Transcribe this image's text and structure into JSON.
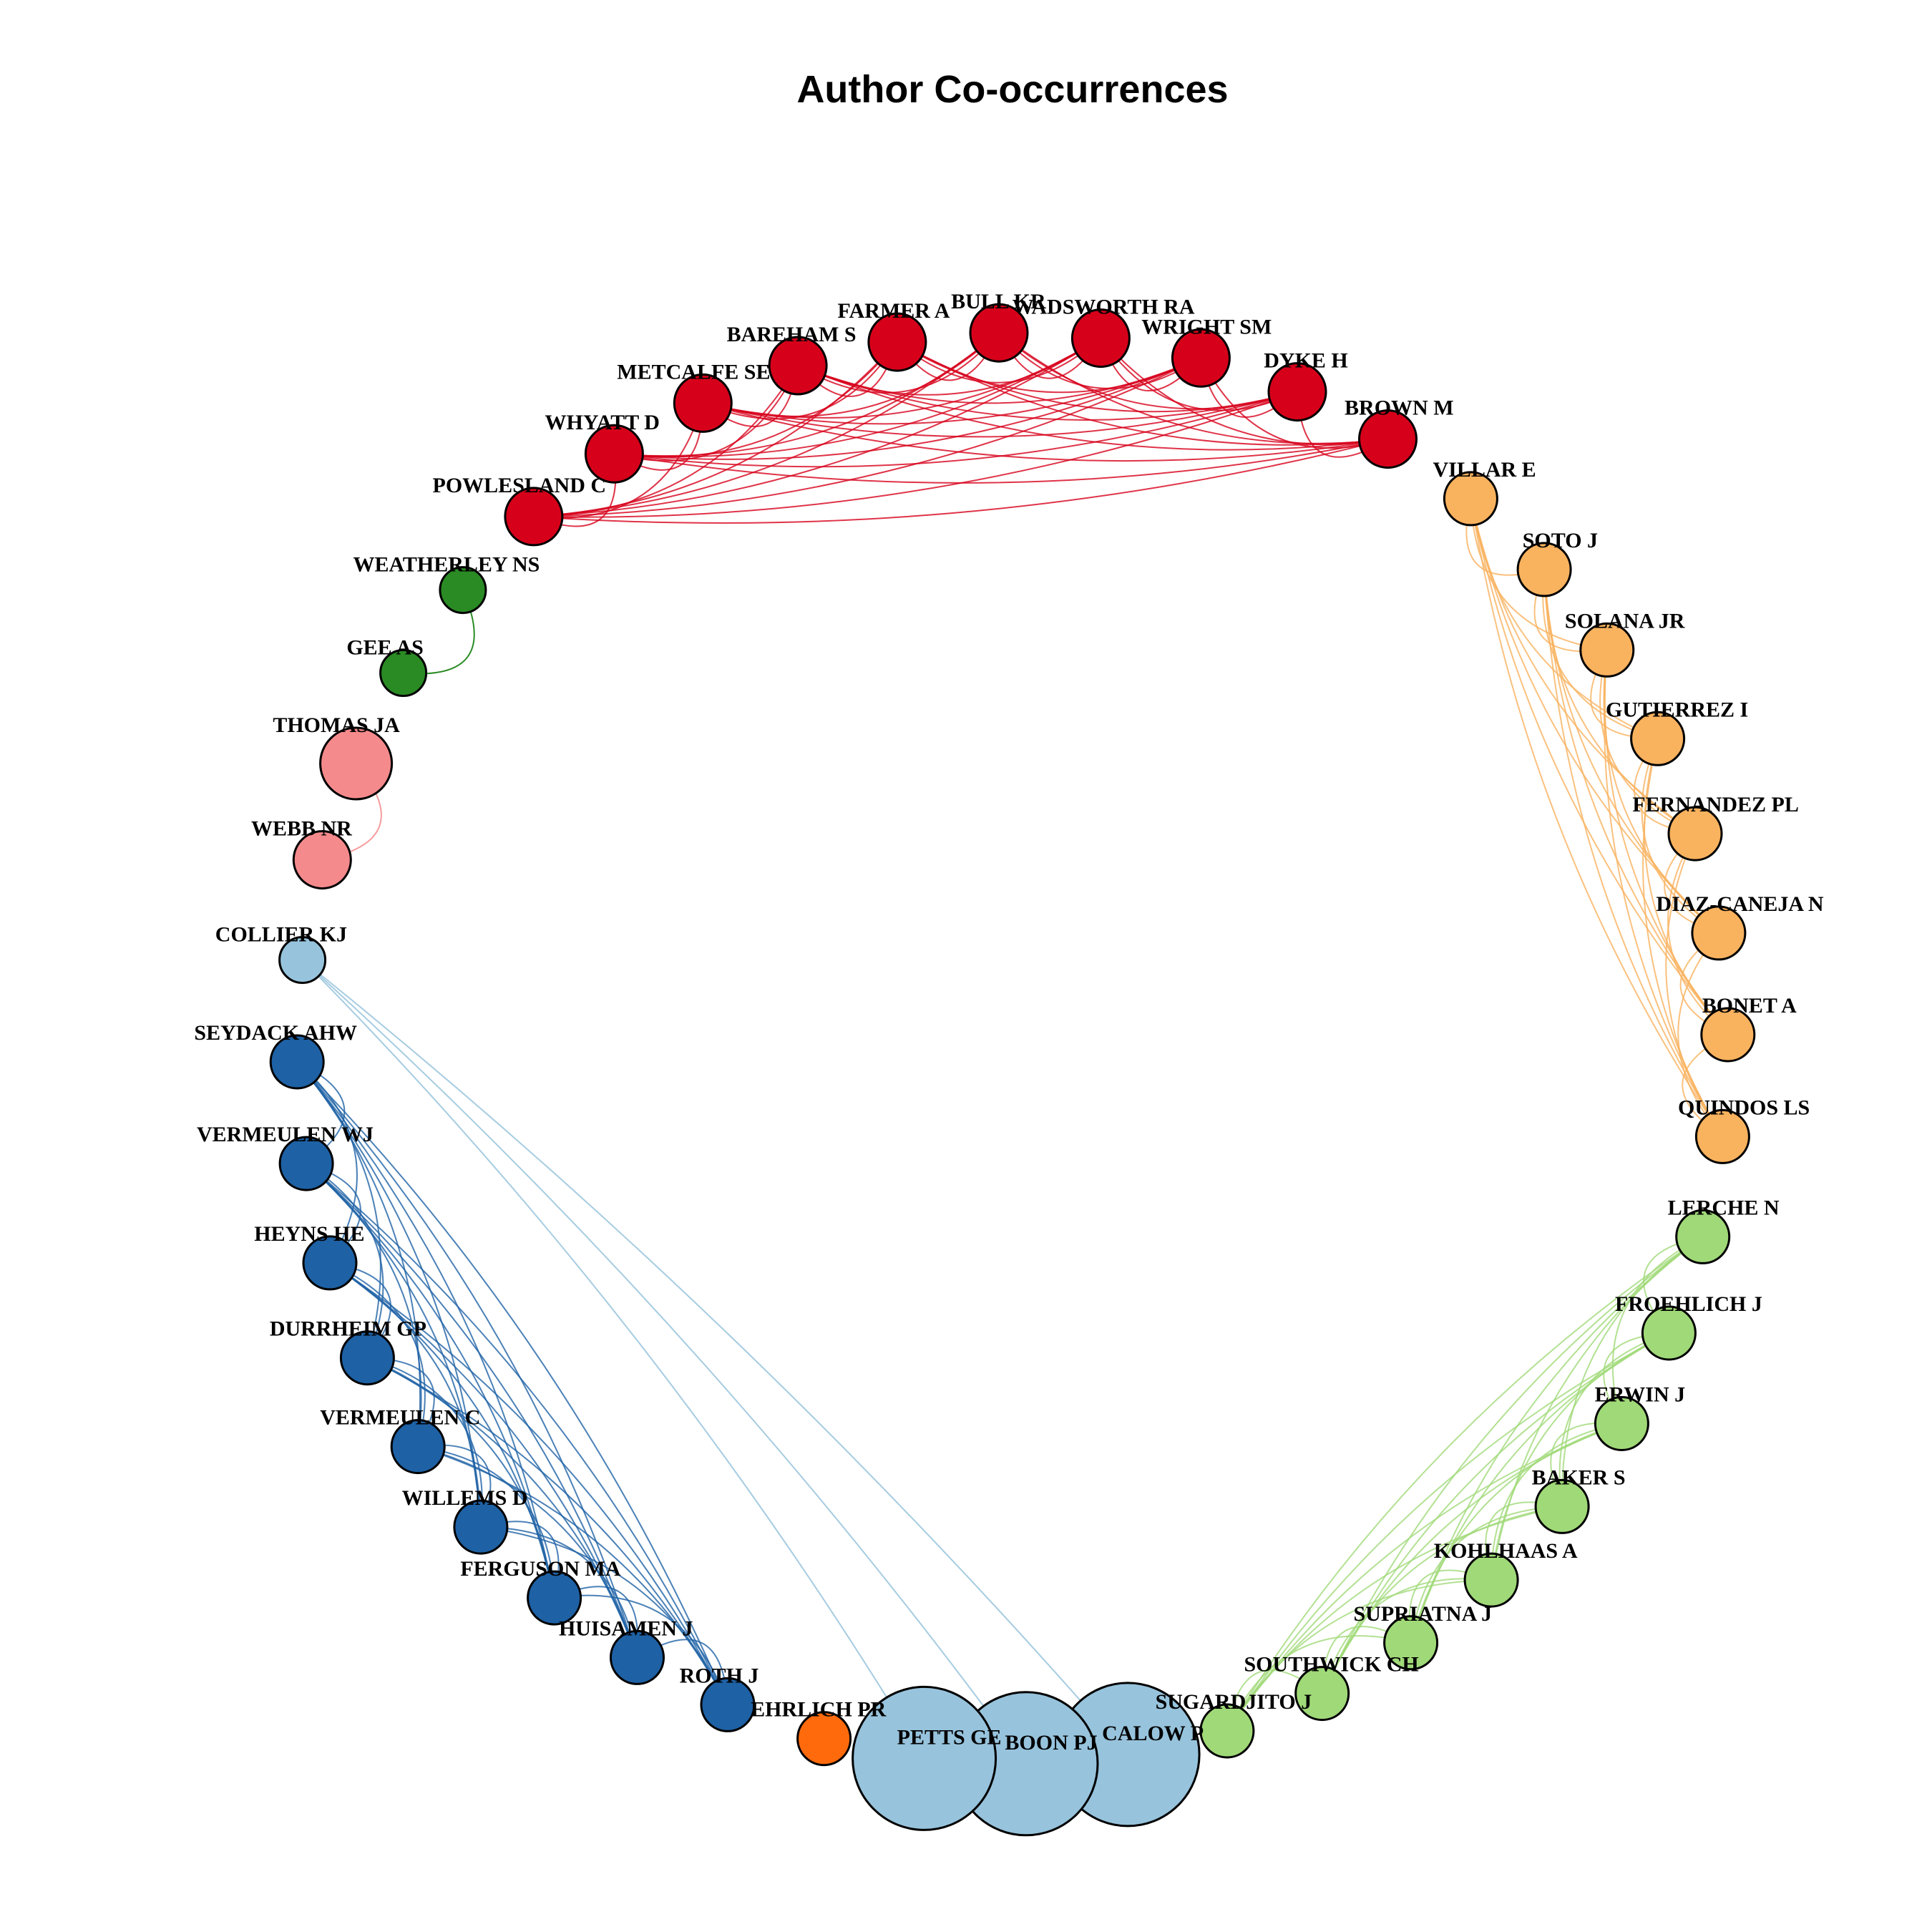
{
  "title": "Author Co-occurrences",
  "groups": [
    {
      "id": "red",
      "color": "#d7001a"
    },
    {
      "id": "orange",
      "color": "#f9b25e"
    },
    {
      "id": "lightgreen",
      "color": "#a0d978"
    },
    {
      "id": "lightblue",
      "color": "#97c3dc"
    },
    {
      "id": "darkorange",
      "color": "#ff6a0d"
    },
    {
      "id": "blue",
      "color": "#1e61a5"
    },
    {
      "id": "pink",
      "color": "#f58a8c"
    },
    {
      "id": "green",
      "color": "#2a8b24"
    }
  ],
  "nodes": [
    {
      "label": "POWLESLAND C",
      "group": "red",
      "size": "medium"
    },
    {
      "label": "WHYATT D",
      "group": "red",
      "size": "medium"
    },
    {
      "label": "METCALFE SE",
      "group": "red",
      "size": "medium"
    },
    {
      "label": "BAREHAM S",
      "group": "red",
      "size": "medium"
    },
    {
      "label": "FARMER A",
      "group": "red",
      "size": "medium"
    },
    {
      "label": "BULL KR",
      "group": "red",
      "size": "medium"
    },
    {
      "label": "WADSWORTH RA",
      "group": "red",
      "size": "medium"
    },
    {
      "label": "WRIGHT SM",
      "group": "red",
      "size": "medium"
    },
    {
      "label": "DYKE H",
      "group": "red",
      "size": "medium"
    },
    {
      "label": "BROWN M",
      "group": "red",
      "size": "medium"
    },
    {
      "label": "VILLAR E",
      "group": "orange",
      "size": "small"
    },
    {
      "label": "SOTO J",
      "group": "orange",
      "size": "small"
    },
    {
      "label": "SOLANA JR",
      "group": "orange",
      "size": "small"
    },
    {
      "label": "GUTIERREZ I",
      "group": "orange",
      "size": "small"
    },
    {
      "label": "FERNANDEZ PL",
      "group": "orange",
      "size": "small"
    },
    {
      "label": "DIAZ-CANEJA N",
      "group": "orange",
      "size": "small"
    },
    {
      "label": "BONET A",
      "group": "orange",
      "size": "small"
    },
    {
      "label": "QUINDOS LS",
      "group": "orange",
      "size": "small"
    },
    {
      "label": "LERCHE N",
      "group": "lightgreen",
      "size": "small"
    },
    {
      "label": "FROEHLICH J",
      "group": "lightgreen",
      "size": "small"
    },
    {
      "label": "ERWIN J",
      "group": "lightgreen",
      "size": "small"
    },
    {
      "label": "BAKER S",
      "group": "lightgreen",
      "size": "small"
    },
    {
      "label": "KOHLHAAS A",
      "group": "lightgreen",
      "size": "small"
    },
    {
      "label": "SUPRIATNA J",
      "group": "lightgreen",
      "size": "small"
    },
    {
      "label": "SOUTHWICK CH",
      "group": "lightgreen",
      "size": "small"
    },
    {
      "label": "SUGARDJITO J",
      "group": "lightgreen",
      "size": "small"
    },
    {
      "label": "CALOW P",
      "group": "lightblue",
      "size": "xlarge"
    },
    {
      "label": "BOON PJ",
      "group": "lightblue",
      "size": "xlarge"
    },
    {
      "label": "PETTS GE",
      "group": "lightblue",
      "size": "xlarge"
    },
    {
      "label": "EHRLICH PR",
      "group": "darkorange",
      "size": "small"
    },
    {
      "label": "ROTH J",
      "group": "blue",
      "size": "small"
    },
    {
      "label": "HUISAMEN J",
      "group": "blue",
      "size": "small"
    },
    {
      "label": "FERGUSON MA",
      "group": "blue",
      "size": "small"
    },
    {
      "label": "WILLEMS D",
      "group": "blue",
      "size": "small"
    },
    {
      "label": "VERMEULEN C",
      "group": "blue",
      "size": "small"
    },
    {
      "label": "DURRHEIM GP",
      "group": "blue",
      "size": "small"
    },
    {
      "label": "HEYNS HE",
      "group": "blue",
      "size": "small"
    },
    {
      "label": "VERMEULEN WJ",
      "group": "blue",
      "size": "small"
    },
    {
      "label": "SEYDACK AHW",
      "group": "blue",
      "size": "small"
    },
    {
      "label": "COLLIER KJ",
      "group": "lightblue",
      "size": "tiny"
    },
    {
      "label": "WEBB NR",
      "group": "pink",
      "size": "medium"
    },
    {
      "label": "THOMAS JA",
      "group": "pink",
      "size": "large"
    },
    {
      "label": "GEE AS",
      "group": "green",
      "size": "tiny"
    },
    {
      "label": "WEATHERLEY NS",
      "group": "green",
      "size": "tiny"
    }
  ],
  "edges": [
    {
      "from": "GEE AS",
      "to": "WEATHERLEY NS",
      "group": "green"
    },
    {
      "from": "WEBB NR",
      "to": "THOMAS JA",
      "group": "pink"
    },
    {
      "from": "COLLIER KJ",
      "to": "PETTS GE",
      "group": "lightblue"
    },
    {
      "from": "COLLIER KJ",
      "to": "BOON PJ",
      "group": "lightblue"
    },
    {
      "from": "COLLIER KJ",
      "to": "CALOW P",
      "group": "lightblue"
    }
  ],
  "cliques": [
    {
      "group": "red",
      "members": [
        "POWLESLAND C",
        "WHYATT D",
        "METCALFE SE",
        "BAREHAM S",
        "FARMER A",
        "BULL KR",
        "WADSWORTH RA",
        "WRIGHT SM",
        "DYKE H",
        "BROWN M"
      ]
    },
    {
      "group": "orange",
      "members": [
        "VILLAR E",
        "SOTO J",
        "SOLANA JR",
        "GUTIERREZ I",
        "FERNANDEZ PL",
        "DIAZ-CANEJA N",
        "BONET A",
        "QUINDOS LS"
      ]
    },
    {
      "group": "lightgreen",
      "members": [
        "LERCHE N",
        "FROEHLICH J",
        "ERWIN J",
        "BAKER S",
        "KOHLHAAS A",
        "SUPRIATNA J",
        "SOUTHWICK CH",
        "SUGARDJITO J"
      ]
    },
    {
      "group": "blue",
      "members": [
        "ROTH J",
        "HUISAMEN J",
        "FERGUSON MA",
        "WILLEMS D",
        "VERMEULEN C",
        "DURRHEIM GP",
        "HEYNS HE",
        "VERMEULEN WJ",
        "SEYDACK AHW"
      ]
    }
  ]
}
